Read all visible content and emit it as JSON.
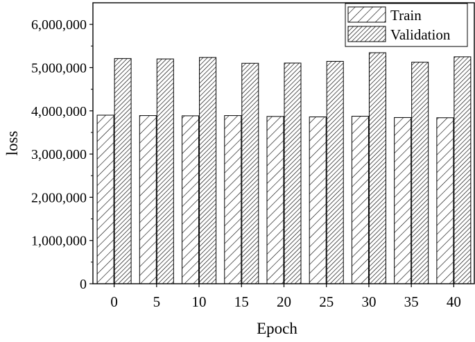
{
  "chart_data": {
    "type": "bar",
    "xlabel": "Epoch",
    "ylabel": "loss",
    "categories": [
      "0",
      "5",
      "10",
      "15",
      "20",
      "25",
      "30",
      "35",
      "40"
    ],
    "series": [
      {
        "name": "Train",
        "pattern": "sparse-diagonal-hatch",
        "values": [
          3900000,
          3890000,
          3885000,
          3890000,
          3870000,
          3860000,
          3875000,
          3845000,
          3840000
        ]
      },
      {
        "name": "Validation",
        "pattern": "dense-diagonal-hatch",
        "values": [
          5210000,
          5200000,
          5235000,
          5100000,
          5105000,
          5145000,
          5345000,
          5125000,
          5250000
        ]
      }
    ],
    "ylim": [
      0,
      6500000
    ],
    "yticks": [
      0,
      1000000,
      2000000,
      3000000,
      4000000,
      5000000,
      6000000
    ],
    "ytick_labels": [
      "0",
      "1,000,000",
      "2,000,000",
      "3,000,000",
      "4,000,000",
      "5,000,000",
      "6,000,000"
    ],
    "legend_position": "top-right",
    "grid": false
  }
}
